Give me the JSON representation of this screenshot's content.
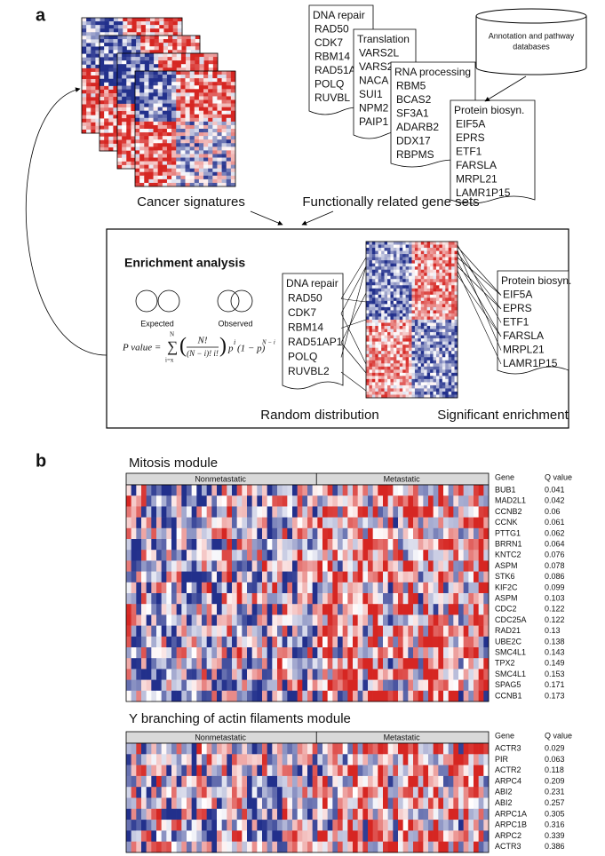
{
  "panel_a": {
    "label": "a",
    "gene_sets": [
      {
        "title": "DNA repair",
        "genes": [
          "RAD50",
          "CDK7",
          "RBM14",
          "RAD51A",
          "POLQ",
          "RUVBL"
        ]
      },
      {
        "title": "Translation",
        "genes": [
          "VARS2L",
          "VARS2",
          "NACA",
          "SUI1",
          "NPM2",
          "PAIP1"
        ]
      },
      {
        "title": "RNA processing",
        "genes": [
          "RBM5",
          "BCAS2",
          "SF3A1",
          "ADARB2",
          "DDX17",
          "RBPMS"
        ]
      },
      {
        "title": "Protein biosyn.",
        "genes": [
          "EIF5A",
          "EPRS",
          "ETF1",
          "FARSLA",
          "MRPL21",
          "LAMR1P15"
        ]
      }
    ],
    "database": [
      "Annotation and pathway",
      "databases"
    ],
    "signatures_label": "Cancer signatures",
    "gene_sets_label": "Functionally related gene sets",
    "enrichment": {
      "title": "Enrichment analysis",
      "expected": "Expected",
      "observed": "Observed",
      "formula": {
        "lhs": "P value =",
        "sum": "∑",
        "lower": "i=x",
        "upper": "N",
        "numerator": "N!",
        "denominator": "(N − i)! i!",
        "base": "p",
        "exp1": "i",
        "mid": "(1 − p)",
        "exp2": "N − i"
      },
      "left_set": {
        "title": "DNA repair",
        "genes": [
          "RAD50",
          "CDK7",
          "RBM14",
          "RAD51AP1",
          "POLQ",
          "RUVBL2"
        ]
      },
      "right_set": {
        "title": "Protein biosyn.",
        "genes": [
          "EIF5A",
          "EPRS",
          "ETF1",
          "FARSLA",
          "MRPL21",
          "LAMR1P15"
        ]
      },
      "random": "Random distribution",
      "significant": "Significant enrichment"
    }
  },
  "panel_b": {
    "label": "b",
    "modules": [
      {
        "title": "Mitosis module",
        "groups": [
          "Nonmetastatic",
          "Metastatic"
        ],
        "columns": [
          "Gene",
          "Q value"
        ],
        "rows": [
          [
            "BUB1",
            0.041
          ],
          [
            "MAD2L1",
            0.042
          ],
          [
            "CCNB2",
            0.06
          ],
          [
            "CCNK",
            0.061
          ],
          [
            "PTTG1",
            0.062
          ],
          [
            "BRRN1",
            0.064
          ],
          [
            "KNTC2",
            0.076
          ],
          [
            "ASPM",
            0.078
          ],
          [
            "STK6",
            0.086
          ],
          [
            "KIF2C",
            0.099
          ],
          [
            "ASPM",
            0.103
          ],
          [
            "CDC2",
            0.122
          ],
          [
            "CDC25A",
            0.122
          ],
          [
            "RAD21",
            0.13
          ],
          [
            "UBE2C",
            0.138
          ],
          [
            "SMC4L1",
            0.143
          ],
          [
            "TPX2",
            0.149
          ],
          [
            "SMC4L1",
            0.153
          ],
          [
            "SPAG5",
            0.171
          ],
          [
            "CCNB1",
            0.173
          ]
        ]
      },
      {
        "title": "Y branching of actin filaments module",
        "groups": [
          "Nonmetastatic",
          "Metastatic"
        ],
        "columns": [
          "Gene",
          "Q value"
        ],
        "rows": [
          [
            "ACTR3",
            0.029
          ],
          [
            "PIR",
            0.063
          ],
          [
            "ACTR2",
            0.118
          ],
          [
            "ARPC4",
            0.209
          ],
          [
            "ABI2",
            0.231
          ],
          [
            "ABI2",
            0.257
          ],
          [
            "ARPC1A",
            0.305
          ],
          [
            "ARPC1B",
            0.316
          ],
          [
            "ARPC2",
            0.339
          ],
          [
            "ACTR3",
            0.386
          ]
        ]
      }
    ]
  }
}
